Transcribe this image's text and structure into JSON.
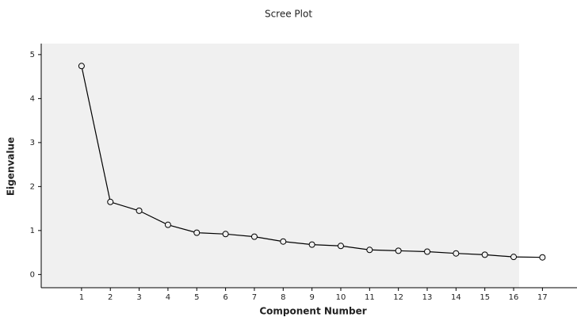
{
  "chart_data": {
    "type": "line",
    "title": "Scree Plot",
    "xlabel": "Component Number",
    "ylabel": "Eigenvalue",
    "x": [
      1,
      2,
      3,
      4,
      5,
      6,
      7,
      8,
      9,
      10,
      11,
      12,
      13,
      14,
      15,
      16,
      17
    ],
    "series": [
      {
        "color": "#000000",
        "values": [
          4.74,
          1.65,
          1.45,
          1.13,
          0.95,
          0.92,
          0.86,
          0.75,
          0.68,
          0.65,
          0.56,
          0.54,
          0.52,
          0.48,
          0.45,
          0.4,
          0.39
        ]
      }
    ],
    "xlim": [
      -0.4,
      18.2
    ],
    "xticks": [
      1,
      2,
      3,
      4,
      5,
      6,
      7,
      8,
      9,
      10,
      11,
      12,
      13,
      14,
      15,
      16,
      17
    ],
    "ylim": [
      -0.3,
      5.25
    ],
    "yticks": [
      0,
      1,
      2,
      3,
      4,
      5
    ]
  }
}
